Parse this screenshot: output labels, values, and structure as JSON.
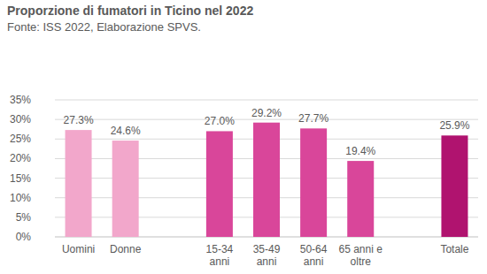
{
  "chart_data": {
    "type": "bar",
    "title": "Proporzione di fumatori in Ticino nel 2022",
    "subtitle": "Fonte: ISS 2022, Elaborazione SPVS.",
    "categories": [
      "Uomini",
      "Donne",
      "15-34 anni",
      "35-49 anni",
      "50-64 anni",
      "65 anni e oltre",
      "Totale"
    ],
    "values": [
      27.3,
      24.6,
      27.0,
      29.2,
      27.7,
      19.4,
      25.9
    ],
    "value_labels": [
      "27.3%",
      "24.6%",
      "27.0%",
      "29.2%",
      "27.7%",
      "19.4%",
      "25.9%"
    ],
    "colors": [
      "#f2a7cb",
      "#f2a7cb",
      "#d9469a",
      "#d9469a",
      "#d9469a",
      "#d9469a",
      "#b0136f"
    ],
    "ylim": [
      0,
      35
    ],
    "yticks": [
      {
        "value": 0,
        "label": "0%"
      },
      {
        "value": 5,
        "label": "5%"
      },
      {
        "value": 10,
        "label": "10%"
      },
      {
        "value": 15,
        "label": "15%"
      },
      {
        "value": 20,
        "label": "20%"
      },
      {
        "value": 25,
        "label": "25%"
      },
      {
        "value": 30,
        "label": "30%"
      },
      {
        "value": 35,
        "label": "35%"
      }
    ],
    "grid": true,
    "data_labels": true
  }
}
